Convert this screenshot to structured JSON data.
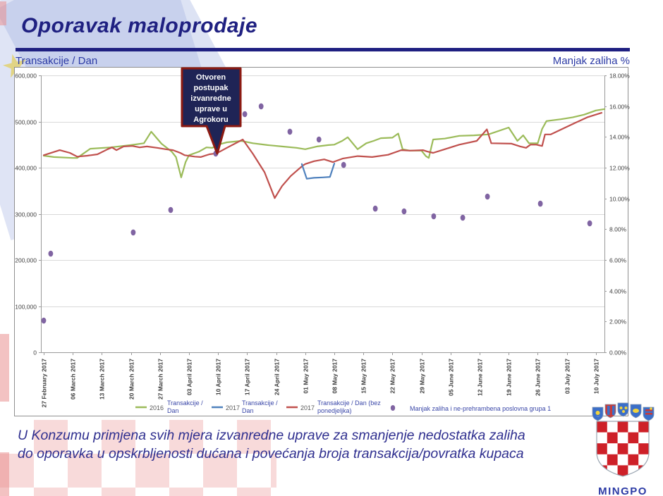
{
  "slide": {
    "title": "Oporavak maloprodaje",
    "left_axis_title": "Transakcije / Dan",
    "right_axis_title": "Manjak zaliha %",
    "footer_line1": "U Konzumu primjena svih mjera izvanredne uprave za smanjenje nedostatka zaliha",
    "footer_line2": "do oporavka u opskrbljenosti dućana i povećanja broja transakcija/povratka kupaca",
    "logo_text": "MINGPO"
  },
  "colors": {
    "green": "#9BBB59",
    "blue": "#4F81BD",
    "red": "#C0504D",
    "purple": "#8064A2",
    "navy": "#1F2081",
    "callout_fill": "#1F2456",
    "callout_border": "#8C1A12"
  },
  "chart_data": {
    "type": "line",
    "title": "",
    "grid": "horizontal",
    "legend_position": "bottom",
    "x_tick_labels": [
      "27 February 2017",
      "06 March 2017",
      "13 March 2017",
      "20 March 2017",
      "27 March 2017",
      "03 April 2017",
      "10 April 2017",
      "17 April 2017",
      "24 April 2017",
      "01 May 2017",
      "08 May 2017",
      "15 May 2017",
      "22 May 2017",
      "29 May 2017",
      "05 June 2017",
      "12 June 2017",
      "19 June 2017",
      "26 June 2017",
      "03 July 2017",
      "10 July 2017"
    ],
    "left_axis": {
      "min": 0,
      "max": 600000,
      "step": 100000,
      "tick_labels": [
        "0",
        "100,000",
        "200,000",
        "300,000",
        "400,000",
        "500,000",
        "600,000"
      ]
    },
    "right_axis": {
      "min": 0,
      "max": 18,
      "step": 2,
      "tick_labels": [
        "0.00%",
        "2.00%",
        "4.00%",
        "6.00%",
        "8.00%",
        "10.00%",
        "12.00%",
        "14.00%",
        "16.00%",
        "18.00%"
      ]
    },
    "series": [
      {
        "name": "2016 Transakcije / Dan",
        "kind": "line",
        "axis": "left",
        "color_key": "green",
        "points": [
          [
            0,
            426000
          ],
          [
            0.35,
            423000
          ],
          [
            1,
            421000
          ],
          [
            1.15,
            421000
          ],
          [
            1.6,
            441000
          ],
          [
            2.3,
            444000
          ],
          [
            3,
            449000
          ],
          [
            3.45,
            453000
          ],
          [
            3.7,
            478000
          ],
          [
            4.05,
            452000
          ],
          [
            4.4,
            435000
          ],
          [
            4.55,
            423000
          ],
          [
            4.73,
            379000
          ],
          [
            4.88,
            412000
          ],
          [
            5,
            427000
          ],
          [
            5.35,
            435000
          ],
          [
            5.6,
            444000
          ],
          [
            5.8,
            443000
          ],
          [
            6,
            450000
          ],
          [
            6.3,
            455000
          ],
          [
            6.8,
            458000
          ],
          [
            7.2,
            453000
          ],
          [
            7.7,
            449000
          ],
          [
            8.2,
            446000
          ],
          [
            8.7,
            443000
          ],
          [
            9,
            440000
          ],
          [
            9.4,
            446000
          ],
          [
            9.8,
            449000
          ],
          [
            10,
            450000
          ],
          [
            10.27,
            458000
          ],
          [
            10.46,
            466000
          ],
          [
            10.8,
            440000
          ],
          [
            11.1,
            453000
          ],
          [
            11.35,
            458000
          ],
          [
            11.6,
            464000
          ],
          [
            12,
            465000
          ],
          [
            12.2,
            474000
          ],
          [
            12.35,
            440000
          ],
          [
            12.6,
            437000
          ],
          [
            13,
            437000
          ],
          [
            13.15,
            425000
          ],
          [
            13.25,
            421000
          ],
          [
            13.4,
            461000
          ],
          [
            13.8,
            463000
          ],
          [
            14.3,
            469000
          ],
          [
            14.8,
            470000
          ],
          [
            15.3,
            472000
          ],
          [
            16,
            487000
          ],
          [
            16.3,
            458000
          ],
          [
            16.5,
            470000
          ],
          [
            16.7,
            453000
          ],
          [
            17,
            453000
          ],
          [
            17.15,
            484000
          ],
          [
            17.3,
            501000
          ],
          [
            17.8,
            505000
          ],
          [
            18.2,
            509000
          ],
          [
            18.6,
            515000
          ],
          [
            19,
            524000
          ],
          [
            19.3,
            527000
          ]
        ]
      },
      {
        "name": "2017 Transakcije / Dan (bez ponedjeljka)",
        "kind": "line",
        "axis": "left",
        "color_key": "red",
        "points": [
          [
            0,
            427000
          ],
          [
            0.55,
            438000
          ],
          [
            0.9,
            432000
          ],
          [
            1.15,
            424000
          ],
          [
            1.5,
            426000
          ],
          [
            1.85,
            429000
          ],
          [
            2.2,
            440000
          ],
          [
            2.35,
            444000
          ],
          [
            2.5,
            438000
          ],
          [
            2.75,
            446000
          ],
          [
            3.05,
            447000
          ],
          [
            3.3,
            444000
          ],
          [
            3.55,
            446000
          ],
          [
            3.9,
            443000
          ],
          [
            4.2,
            440000
          ],
          [
            4.45,
            438000
          ],
          [
            4.7,
            432000
          ],
          [
            4.85,
            427000
          ],
          [
            5.2,
            424000
          ],
          [
            5.4,
            423000
          ],
          [
            5.7,
            429000
          ],
          [
            5.95,
            431000
          ],
          [
            6.3,
            443000
          ],
          [
            6.85,
            461000
          ],
          [
            7.2,
            430000
          ],
          [
            7.6,
            390000
          ],
          [
            7.95,
            334000
          ],
          [
            8.2,
            360000
          ],
          [
            8.5,
            382000
          ],
          [
            8.9,
            404000
          ],
          [
            9,
            408000
          ],
          [
            9.3,
            414000
          ],
          [
            9.65,
            418000
          ],
          [
            9.95,
            412000
          ],
          [
            10.3,
            420000
          ],
          [
            10.8,
            425000
          ],
          [
            11.3,
            423000
          ],
          [
            11.85,
            428000
          ],
          [
            12.3,
            438000
          ],
          [
            12.6,
            437000
          ],
          [
            13.05,
            438000
          ],
          [
            13.2,
            435000
          ],
          [
            13.4,
            432000
          ],
          [
            13.8,
            440000
          ],
          [
            14.3,
            450000
          ],
          [
            14.9,
            458000
          ],
          [
            15.25,
            483000
          ],
          [
            15.4,
            453000
          ],
          [
            16.1,
            452000
          ],
          [
            16.4,
            446000
          ],
          [
            16.6,
            443000
          ],
          [
            16.75,
            450000
          ],
          [
            16.95,
            450000
          ],
          [
            17.15,
            447000
          ],
          [
            17.25,
            472000
          ],
          [
            17.45,
            472000
          ],
          [
            17.75,
            481000
          ],
          [
            18.25,
            496000
          ],
          [
            18.7,
            509000
          ],
          [
            19.2,
            519000
          ]
        ]
      },
      {
        "name": "2017 Transakcije / Dan",
        "kind": "line",
        "axis": "left",
        "color_key": "blue",
        "points": [
          [
            8.88,
            408000
          ],
          [
            9.05,
            376000
          ],
          [
            9.3,
            378000
          ],
          [
            9.6,
            379000
          ],
          [
            9.85,
            380000
          ],
          [
            10,
            409000
          ]
        ]
      },
      {
        "name": "Manjak zaliha i ne-prehrambena poslovna grupa 1",
        "kind": "scatter",
        "axis": "right",
        "color_key": "purple",
        "points": [
          [
            0,
            2.06
          ],
          [
            0.24,
            6.41
          ],
          [
            3.08,
            7.79
          ],
          [
            4.37,
            9.25
          ],
          [
            5.92,
            12.92
          ],
          [
            6.92,
            15.48
          ],
          [
            7.48,
            15.99
          ],
          [
            8.47,
            14.34
          ],
          [
            9.47,
            13.83
          ],
          [
            10.32,
            12.18
          ],
          [
            11.41,
            9.34
          ],
          [
            12.4,
            9.16
          ],
          [
            13.42,
            8.84
          ],
          [
            14.42,
            8.75
          ],
          [
            15.27,
            10.12
          ],
          [
            17.09,
            9.66
          ],
          [
            18.79,
            8.38
          ]
        ]
      }
    ],
    "legend": [
      {
        "marker": "line",
        "color_key": "green",
        "year": "2016",
        "label": [
          "Transakcije /",
          "Dan"
        ]
      },
      {
        "marker": "line",
        "color_key": "blue",
        "year": "2017",
        "label": [
          "Transakcije /",
          "Dan"
        ]
      },
      {
        "marker": "line",
        "color_key": "red",
        "year": "2017",
        "label": [
          "Transakcije / Dan (bez",
          "ponedjeljka)"
        ]
      },
      {
        "marker": "dot",
        "color_key": "purple",
        "year": "",
        "label": [
          "Manjak zaliha i ne-prehrambena poslovna grupa 1"
        ]
      }
    ],
    "annotation": {
      "lines": [
        "Otvoren",
        "postupak",
        "izvanredne",
        "uprave u",
        "Agrokoru"
      ],
      "target": {
        "week": 5.92,
        "pct": 12.92
      }
    }
  }
}
